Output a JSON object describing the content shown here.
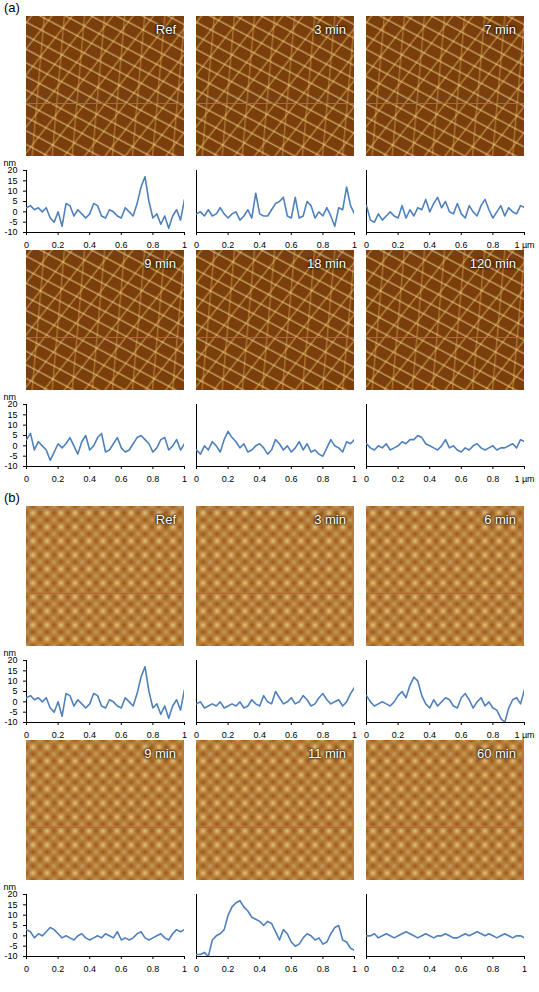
{
  "chart_data": [
    {
      "panel": "(a)",
      "type": "line",
      "title": "Ref",
      "y_label": "nm",
      "color": "#4f81bd",
      "x": [
        0,
        0.025,
        0.05,
        0.075,
        0.1,
        0.125,
        0.15,
        0.175,
        0.2,
        0.225,
        0.25,
        0.275,
        0.3,
        0.325,
        0.35,
        0.375,
        0.4,
        0.425,
        0.45,
        0.475,
        0.5,
        0.525,
        0.55,
        0.575,
        0.6,
        0.625,
        0.65,
        0.675,
        0.7,
        0.725,
        0.75,
        0.775,
        0.8,
        0.825,
        0.85,
        0.875,
        0.9,
        0.925,
        0.95,
        0.975,
        1
      ],
      "values": [
        2,
        3,
        1,
        2,
        0,
        2,
        -3,
        -5,
        0,
        -7,
        4,
        3,
        -2,
        1,
        -1,
        -3,
        -1,
        4,
        3,
        -2,
        -3,
        1,
        0,
        -2,
        -3,
        2,
        0,
        -2,
        4,
        12,
        17,
        5,
        -3,
        -1,
        -6,
        -2,
        -8,
        -2,
        1,
        -4,
        6
      ],
      "xlim": [
        0,
        1
      ],
      "ylim": [
        -10,
        20
      ],
      "xticks": [
        0,
        0.2,
        0.4,
        0.6,
        0.8,
        1
      ],
      "yticks": [
        -10,
        -5,
        0,
        5,
        10,
        15,
        20
      ]
    },
    {
      "panel": "(a)",
      "type": "line",
      "title": "3 min",
      "color": "#4f81bd",
      "tick_labels": "x",
      "x": [
        0,
        0.025,
        0.05,
        0.075,
        0.1,
        0.125,
        0.15,
        0.175,
        0.2,
        0.225,
        0.25,
        0.275,
        0.3,
        0.325,
        0.35,
        0.375,
        0.4,
        0.425,
        0.45,
        0.475,
        0.5,
        0.525,
        0.55,
        0.575,
        0.6,
        0.625,
        0.65,
        0.675,
        0.7,
        0.725,
        0.75,
        0.775,
        0.8,
        0.825,
        0.85,
        0.875,
        0.9,
        0.925,
        0.95,
        0.975,
        1
      ],
      "values": [
        -1,
        0,
        -2,
        1,
        -2,
        -1,
        2,
        -1,
        -3,
        -1,
        0,
        -4,
        -2,
        1,
        -3,
        9,
        -1,
        -2,
        -2,
        1,
        4,
        5,
        7,
        -2,
        -3,
        7,
        -3,
        -2,
        5,
        3,
        -3,
        0,
        -2,
        2,
        -2,
        -7,
        2,
        1,
        12,
        3,
        -1
      ],
      "xlim": [
        0,
        1
      ],
      "ylim": [
        -10,
        20
      ],
      "xticks": [
        0,
        0.2,
        0.4,
        0.6,
        0.8,
        1
      ]
    },
    {
      "panel": "(a)",
      "type": "line",
      "title": "7 min",
      "color": "#4f81bd",
      "tick_labels": "x",
      "x": [
        0,
        0.025,
        0.05,
        0.075,
        0.1,
        0.125,
        0.15,
        0.175,
        0.2,
        0.225,
        0.25,
        0.275,
        0.3,
        0.325,
        0.35,
        0.375,
        0.4,
        0.425,
        0.45,
        0.475,
        0.5,
        0.525,
        0.55,
        0.575,
        0.6,
        0.625,
        0.65,
        0.675,
        0.7,
        0.725,
        0.75,
        0.775,
        0.8,
        0.825,
        0.85,
        0.875,
        0.9,
        0.925,
        0.95,
        0.975,
        1
      ],
      "values": [
        3,
        -4,
        -5,
        -1,
        -4,
        -2,
        0,
        -2,
        -3,
        3,
        -3,
        1,
        -2,
        2,
        1,
        6,
        0,
        4,
        7,
        2,
        5,
        0,
        -1,
        4,
        -1,
        -3,
        3,
        0,
        -2,
        3,
        6,
        1,
        -3,
        0,
        3,
        -2,
        2,
        0,
        -1,
        3,
        2
      ],
      "xlim": [
        0,
        1
      ],
      "ylim": [
        -10,
        20
      ],
      "xticks": [
        0,
        0.2,
        0.4,
        0.6,
        0.8,
        {
          "value": 1,
          "label": "1 µm"
        }
      ]
    },
    {
      "panel": "(a)",
      "type": "line",
      "title": "9 min",
      "y_label": "nm",
      "color": "#4f81bd",
      "x": [
        0,
        0.025,
        0.05,
        0.075,
        0.1,
        0.125,
        0.15,
        0.175,
        0.2,
        0.225,
        0.25,
        0.275,
        0.3,
        0.325,
        0.35,
        0.375,
        0.4,
        0.425,
        0.45,
        0.475,
        0.5,
        0.525,
        0.55,
        0.575,
        0.6,
        0.625,
        0.65,
        0.675,
        0.7,
        0.725,
        0.75,
        0.775,
        0.8,
        0.825,
        0.85,
        0.875,
        0.9,
        0.925,
        0.95,
        0.975,
        1
      ],
      "values": [
        3,
        6,
        -2,
        2,
        0,
        -2,
        -7,
        -3,
        1,
        -1,
        1,
        4,
        0,
        -4,
        2,
        5,
        -2,
        0,
        4,
        6,
        -3,
        -2,
        1,
        4,
        -1,
        -3,
        -2,
        1,
        4,
        5,
        3,
        1,
        -3,
        -1,
        3,
        4,
        -2,
        0,
        3,
        -2,
        1
      ],
      "xlim": [
        0,
        1
      ],
      "ylim": [
        -10,
        20
      ],
      "xticks": [
        0,
        0.2,
        0.4,
        0.6,
        0.8,
        1
      ],
      "yticks": [
        -10,
        -5,
        0,
        5,
        10,
        15,
        20
      ]
    },
    {
      "panel": "(a)",
      "type": "line",
      "title": "18 min",
      "color": "#4f81bd",
      "tick_labels": "x",
      "x": [
        0,
        0.025,
        0.05,
        0.075,
        0.1,
        0.125,
        0.15,
        0.175,
        0.2,
        0.225,
        0.25,
        0.275,
        0.3,
        0.325,
        0.35,
        0.375,
        0.4,
        0.425,
        0.45,
        0.475,
        0.5,
        0.525,
        0.55,
        0.575,
        0.6,
        0.625,
        0.65,
        0.675,
        0.7,
        0.725,
        0.75,
        0.775,
        0.8,
        0.825,
        0.85,
        0.875,
        0.9,
        0.925,
        0.95,
        0.975,
        1
      ],
      "values": [
        -2,
        -4,
        0,
        -2,
        2,
        0,
        -3,
        3,
        7,
        4,
        2,
        -1,
        1,
        -3,
        -2,
        0,
        1,
        -1,
        -4,
        -2,
        3,
        1,
        -2,
        0,
        -3,
        -1,
        2,
        -2,
        1,
        -3,
        -2,
        -4,
        -5,
        -1,
        3,
        0,
        -1,
        -3,
        2,
        1,
        3
      ],
      "xlim": [
        0,
        1
      ],
      "ylim": [
        -10,
        20
      ],
      "xticks": [
        0,
        0.2,
        0.4,
        0.6,
        0.8,
        1
      ]
    },
    {
      "panel": "(a)",
      "type": "line",
      "title": "120 min",
      "color": "#4f81bd",
      "tick_labels": "x",
      "x": [
        0,
        0.025,
        0.05,
        0.075,
        0.1,
        0.125,
        0.15,
        0.175,
        0.2,
        0.225,
        0.25,
        0.275,
        0.3,
        0.325,
        0.35,
        0.375,
        0.4,
        0.425,
        0.45,
        0.475,
        0.5,
        0.525,
        0.55,
        0.575,
        0.6,
        0.625,
        0.65,
        0.675,
        0.7,
        0.725,
        0.75,
        0.775,
        0.8,
        0.825,
        0.85,
        0.875,
        0.9,
        0.925,
        0.95,
        0.975,
        1
      ],
      "values": [
        1,
        -1,
        -2,
        0,
        -1,
        1,
        -2,
        -1,
        0,
        2,
        1,
        3,
        3,
        5,
        4,
        1,
        0,
        -1,
        -2,
        0,
        3,
        -1,
        0,
        -2,
        -3,
        -1,
        -2,
        0,
        1,
        -1,
        -2,
        -1,
        0,
        -2,
        -1,
        -1,
        0,
        1,
        -1,
        3,
        2
      ],
      "xlim": [
        0,
        1
      ],
      "ylim": [
        -10,
        20
      ],
      "xticks": [
        0,
        0.2,
        0.4,
        0.6,
        0.8,
        {
          "value": 1,
          "label": "1 µm"
        }
      ]
    },
    {
      "panel": "(b)",
      "type": "line",
      "title": "Ref",
      "y_label": "nm",
      "color": "#4f81bd",
      "x": [
        0,
        0.025,
        0.05,
        0.075,
        0.1,
        0.125,
        0.15,
        0.175,
        0.2,
        0.225,
        0.25,
        0.275,
        0.3,
        0.325,
        0.35,
        0.375,
        0.4,
        0.425,
        0.45,
        0.475,
        0.5,
        0.525,
        0.55,
        0.575,
        0.6,
        0.625,
        0.65,
        0.675,
        0.7,
        0.725,
        0.75,
        0.775,
        0.8,
        0.825,
        0.85,
        0.875,
        0.9,
        0.925,
        0.95,
        0.975,
        1
      ],
      "values": [
        2,
        3,
        1,
        2,
        0,
        2,
        -3,
        -5,
        0,
        -7,
        4,
        3,
        -2,
        1,
        -1,
        -3,
        -1,
        4,
        3,
        -2,
        -3,
        1,
        0,
        -2,
        -3,
        2,
        0,
        -2,
        4,
        12,
        17,
        5,
        -3,
        -1,
        -6,
        -2,
        -8,
        -2,
        1,
        -4,
        6
      ],
      "xlim": [
        0,
        1
      ],
      "ylim": [
        -10,
        20
      ],
      "xticks": [
        0,
        0.2,
        0.4,
        0.6,
        0.8,
        1
      ],
      "yticks": [
        -10,
        -5,
        0,
        5,
        10,
        15,
        20
      ]
    },
    {
      "panel": "(b)",
      "type": "line",
      "title": "3 min",
      "color": "#4f81bd",
      "tick_labels": "x",
      "x": [
        0,
        0.025,
        0.05,
        0.075,
        0.1,
        0.125,
        0.15,
        0.175,
        0.2,
        0.225,
        0.25,
        0.275,
        0.3,
        0.325,
        0.35,
        0.375,
        0.4,
        0.425,
        0.45,
        0.475,
        0.5,
        0.525,
        0.55,
        0.575,
        0.6,
        0.625,
        0.65,
        0.675,
        0.7,
        0.725,
        0.75,
        0.775,
        0.8,
        0.825,
        0.85,
        0.875,
        0.9,
        0.925,
        0.95,
        0.975,
        1
      ],
      "values": [
        -1,
        0,
        -3,
        -2,
        -1,
        -2,
        0,
        -3,
        -2,
        -1,
        -2,
        0,
        -3,
        -2,
        1,
        -1,
        -2,
        3,
        0,
        -1,
        5,
        2,
        -1,
        0,
        2,
        -1,
        0,
        3,
        1,
        -2,
        -1,
        2,
        4,
        1,
        -1,
        0,
        1,
        -2,
        0,
        4,
        7
      ],
      "xlim": [
        0,
        1
      ],
      "ylim": [
        -10,
        20
      ],
      "xticks": [
        0,
        0.2,
        0.4,
        0.6,
        0.8,
        1
      ]
    },
    {
      "panel": "(b)",
      "type": "line",
      "title": "6 min",
      "color": "#4f81bd",
      "tick_labels": "x",
      "x": [
        0,
        0.025,
        0.05,
        0.075,
        0.1,
        0.125,
        0.15,
        0.175,
        0.2,
        0.225,
        0.25,
        0.275,
        0.3,
        0.325,
        0.35,
        0.375,
        0.4,
        0.425,
        0.45,
        0.475,
        0.5,
        0.525,
        0.55,
        0.575,
        0.6,
        0.625,
        0.65,
        0.675,
        0.7,
        0.725,
        0.75,
        0.775,
        0.8,
        0.825,
        0.85,
        0.875,
        0.9,
        0.925,
        0.95,
        0.975,
        1
      ],
      "values": [
        3,
        0,
        -2,
        -1,
        0,
        -1,
        -2,
        0,
        3,
        5,
        2,
        8,
        12,
        10,
        3,
        -1,
        -3,
        1,
        -2,
        0,
        2,
        1,
        -2,
        -3,
        2,
        4,
        1,
        -3,
        0,
        2,
        -2,
        0,
        -3,
        -4,
        -8,
        -10,
        -3,
        1,
        2,
        -1,
        6
      ],
      "xlim": [
        0,
        1
      ],
      "ylim": [
        -10,
        20
      ],
      "xticks": [
        0,
        0.2,
        0.4,
        0.6,
        0.8,
        {
          "value": 1,
          "label": "1 µm"
        }
      ]
    },
    {
      "panel": "(b)",
      "type": "line",
      "title": "9 min",
      "y_label": "nm",
      "color": "#4f81bd",
      "x": [
        0,
        0.025,
        0.05,
        0.075,
        0.1,
        0.125,
        0.15,
        0.175,
        0.2,
        0.225,
        0.25,
        0.275,
        0.3,
        0.325,
        0.35,
        0.375,
        0.4,
        0.425,
        0.45,
        0.475,
        0.5,
        0.525,
        0.55,
        0.575,
        0.6,
        0.625,
        0.65,
        0.675,
        0.7,
        0.725,
        0.75,
        0.775,
        0.8,
        0.825,
        0.85,
        0.875,
        0.9,
        0.925,
        0.95,
        0.975,
        1
      ],
      "values": [
        3,
        2,
        -1,
        1,
        0,
        2,
        4,
        3,
        1,
        -1,
        0,
        -1,
        -2,
        0,
        1,
        -1,
        -2,
        -1,
        0,
        -1,
        1,
        0,
        -1,
        2,
        -2,
        -1,
        -2,
        -1,
        1,
        2,
        -1,
        -2,
        -1,
        0,
        1,
        -1,
        -2,
        1,
        3,
        2,
        3
      ],
      "xlim": [
        0,
        1
      ],
      "ylim": [
        -10,
        20
      ],
      "xticks": [
        0,
        0.2,
        0.4,
        0.6,
        0.8,
        1
      ],
      "yticks": [
        -10,
        -5,
        0,
        5,
        10,
        15,
        20
      ]
    },
    {
      "panel": "(b)",
      "type": "line",
      "title": "11 min",
      "color": "#4f81bd",
      "tick_labels": "x",
      "x": [
        0,
        0.025,
        0.05,
        0.075,
        0.1,
        0.125,
        0.15,
        0.175,
        0.2,
        0.225,
        0.25,
        0.275,
        0.3,
        0.325,
        0.35,
        0.375,
        0.4,
        0.425,
        0.45,
        0.475,
        0.5,
        0.525,
        0.55,
        0.575,
        0.6,
        0.625,
        0.65,
        0.675,
        0.7,
        0.725,
        0.75,
        0.775,
        0.8,
        0.825,
        0.85,
        0.875,
        0.9,
        0.925,
        0.95,
        0.975,
        1
      ],
      "values": [
        -9,
        -9,
        -8,
        -10,
        -2,
        0,
        1,
        3,
        10,
        14,
        16,
        17,
        14,
        12,
        9,
        8,
        7,
        5,
        7,
        6,
        2,
        -2,
        3,
        1,
        -3,
        -5,
        -4,
        -1,
        1,
        0,
        -2,
        -1,
        -4,
        -3,
        1,
        4,
        5,
        -2,
        -3,
        -6,
        -7
      ],
      "xlim": [
        0,
        1
      ],
      "ylim": [
        -10,
        20
      ],
      "xticks": [
        0,
        0.2,
        0.4,
        0.6,
        0.8,
        1
      ]
    },
    {
      "panel": "(b)",
      "type": "line",
      "title": "60 min",
      "color": "#4f81bd",
      "tick_labels": "x",
      "x": [
        0,
        0.025,
        0.05,
        0.075,
        0.1,
        0.125,
        0.15,
        0.175,
        0.2,
        0.225,
        0.25,
        0.275,
        0.3,
        0.325,
        0.35,
        0.375,
        0.4,
        0.425,
        0.45,
        0.475,
        0.5,
        0.525,
        0.55,
        0.575,
        0.6,
        0.625,
        0.65,
        0.675,
        0.7,
        0.725,
        0.75,
        0.775,
        0.8,
        0.825,
        0.85,
        0.875,
        0.9,
        0.925,
        0.95,
        0.975,
        1
      ],
      "values": [
        0,
        0,
        1,
        -1,
        0,
        1,
        0,
        -1,
        0,
        1,
        2,
        1,
        0,
        -1,
        0,
        1,
        0,
        -1,
        0,
        0,
        1,
        0,
        -1,
        -1,
        0,
        1,
        0,
        1,
        2,
        1,
        0,
        1,
        0,
        -1,
        0,
        1,
        0,
        -1,
        0,
        0,
        -1
      ],
      "xlim": [
        0,
        1
      ],
      "ylim": [
        -10,
        20
      ],
      "xticks": [
        0,
        0.2,
        0.4,
        0.6,
        0.8,
        1
      ]
    }
  ]
}
